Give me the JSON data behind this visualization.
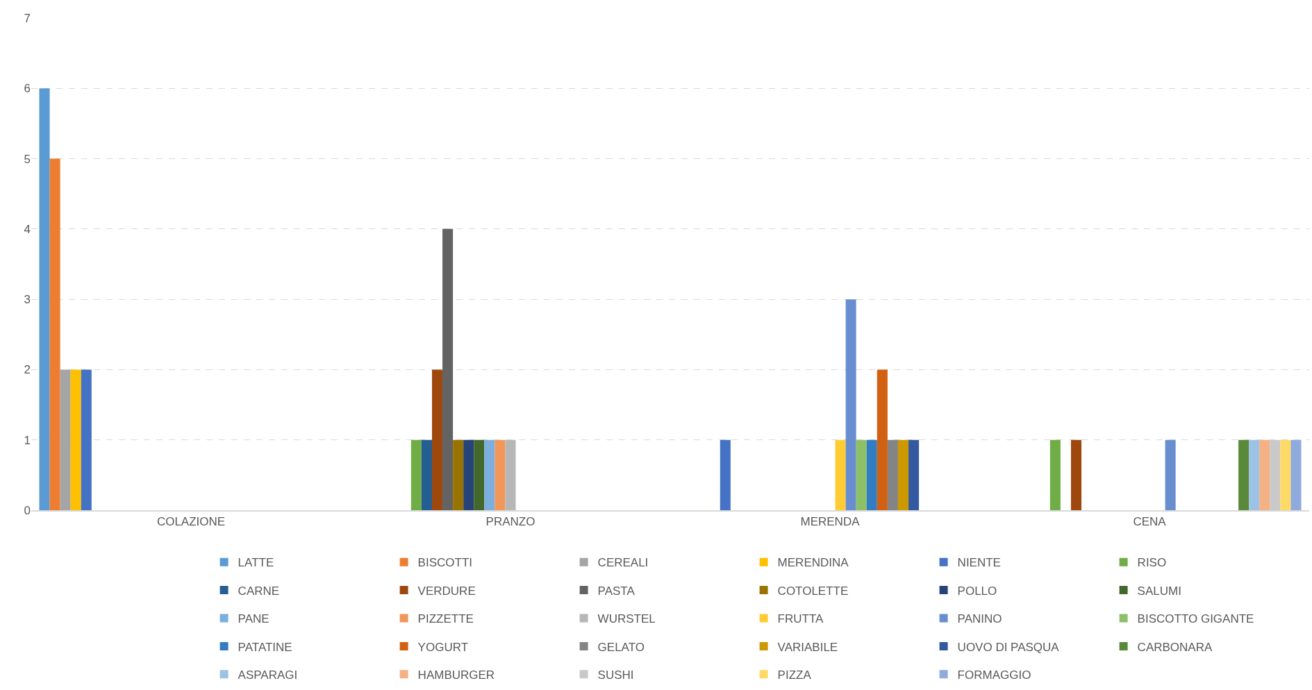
{
  "chart_data": {
    "type": "bar",
    "categories": [
      "COLAZIONE",
      "PRANZO",
      "MERENDA",
      "CENA"
    ],
    "ylim": [
      0,
      7
    ],
    "yticks": [
      0,
      1,
      2,
      3,
      4,
      5,
      6,
      7
    ],
    "grid": "y",
    "legend": "bottom",
    "series": [
      {
        "name": "LATTE",
        "color": "#5b9bd5",
        "values": [
          6,
          0,
          0,
          0
        ]
      },
      {
        "name": "BISCOTTI",
        "color": "#ed7d31",
        "values": [
          5,
          0,
          0,
          0
        ]
      },
      {
        "name": "CEREALI",
        "color": "#a5a5a5",
        "values": [
          2,
          0,
          0,
          0
        ]
      },
      {
        "name": "MERENDINA",
        "color": "#ffc000",
        "values": [
          2,
          0,
          0,
          0
        ]
      },
      {
        "name": "NIENTE",
        "color": "#4472c4",
        "values": [
          2,
          0,
          1,
          0
        ]
      },
      {
        "name": "RISO",
        "color": "#70ad47",
        "values": [
          0,
          1,
          0,
          1
        ]
      },
      {
        "name": "CARNE",
        "color": "#255e91",
        "values": [
          0,
          1,
          0,
          0
        ]
      },
      {
        "name": "VERDURE",
        "color": "#9e480e",
        "values": [
          0,
          2,
          0,
          1
        ]
      },
      {
        "name": "PASTA",
        "color": "#636363",
        "values": [
          0,
          4,
          0,
          0
        ]
      },
      {
        "name": "COTOLETTE",
        "color": "#997300",
        "values": [
          0,
          1,
          0,
          0
        ]
      },
      {
        "name": "POLLO",
        "color": "#264478",
        "values": [
          0,
          1,
          0,
          0
        ]
      },
      {
        "name": "SALUMI",
        "color": "#43682b",
        "values": [
          0,
          1,
          0,
          0
        ]
      },
      {
        "name": "PANE",
        "color": "#7cafdd",
        "values": [
          0,
          1,
          0,
          0
        ]
      },
      {
        "name": "PIZZETTE",
        "color": "#f1975a",
        "values": [
          0,
          1,
          0,
          0
        ]
      },
      {
        "name": "WURSTEL",
        "color": "#b7b7b7",
        "values": [
          0,
          1,
          0,
          0
        ]
      },
      {
        "name": "FRUTTA",
        "color": "#ffcd33",
        "values": [
          0,
          0,
          1,
          0
        ]
      },
      {
        "name": "PANINO",
        "color": "#698ed0",
        "values": [
          0,
          0,
          3,
          1
        ]
      },
      {
        "name": "BISCOTTO GIGANTE",
        "color": "#8cc168",
        "values": [
          0,
          0,
          1,
          0
        ]
      },
      {
        "name": "PATATINE",
        "color": "#327dc2",
        "values": [
          0,
          0,
          1,
          0
        ]
      },
      {
        "name": "YOGURT",
        "color": "#d26012",
        "values": [
          0,
          0,
          2,
          0
        ]
      },
      {
        "name": "GELATO",
        "color": "#848484",
        "values": [
          0,
          0,
          1,
          0
        ]
      },
      {
        "name": "VARIABILE",
        "color": "#cc9a00",
        "values": [
          0,
          0,
          1,
          0
        ]
      },
      {
        "name": "UOVO DI PASQUA",
        "color": "#335aa1",
        "values": [
          0,
          0,
          1,
          0
        ]
      },
      {
        "name": "CARBONARA",
        "color": "#5a8a39",
        "values": [
          0,
          0,
          0,
          1
        ]
      },
      {
        "name": "ASPARAGI",
        "color": "#9cc3e5",
        "values": [
          0,
          0,
          0,
          1
        ]
      },
      {
        "name": "HAMBURGER",
        "color": "#f4b183",
        "values": [
          0,
          0,
          0,
          1
        ]
      },
      {
        "name": "SUSHI",
        "color": "#c9c9c9",
        "values": [
          0,
          0,
          0,
          1
        ]
      },
      {
        "name": "PIZZA",
        "color": "#ffd966",
        "values": [
          0,
          0,
          0,
          1
        ]
      },
      {
        "name": "FORMAGGIO",
        "color": "#8faadc",
        "values": [
          0,
          0,
          0,
          1
        ]
      }
    ]
  }
}
